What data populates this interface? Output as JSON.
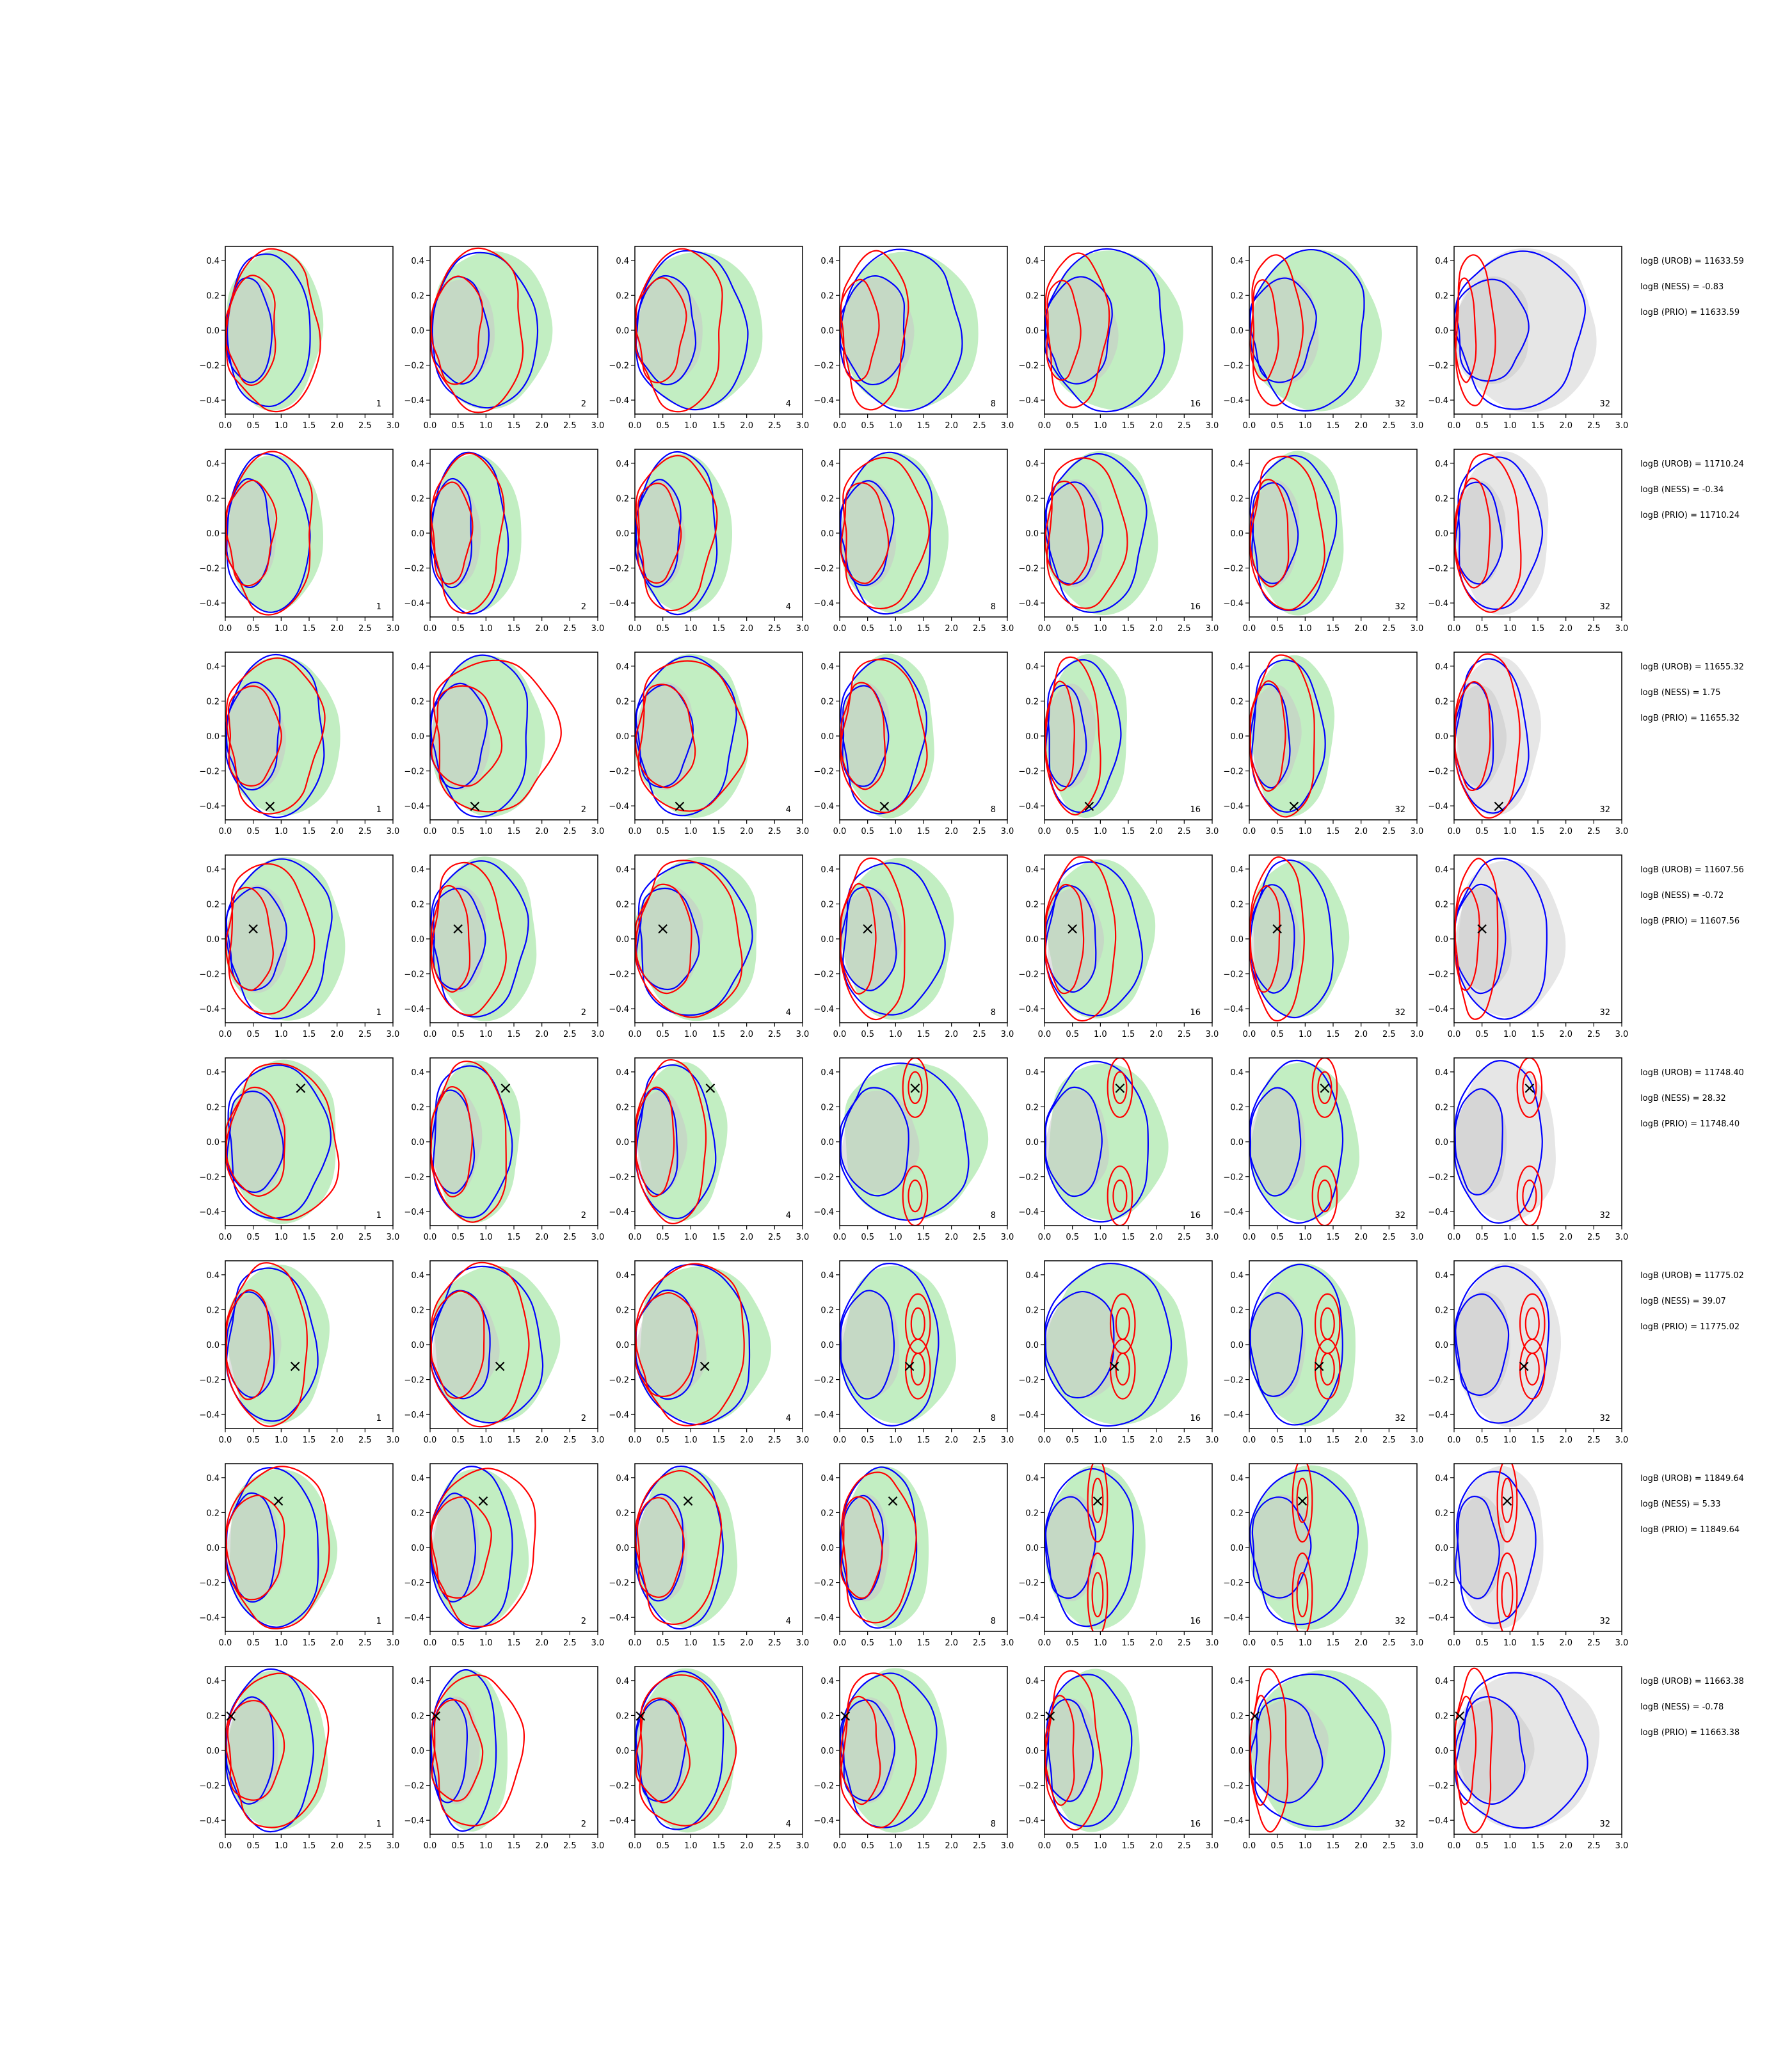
{
  "figure": {
    "type": "contour-grid",
    "xticks": [
      "0.0",
      "0.5",
      "1.0",
      "1.5",
      "2.0",
      "2.5",
      "3.0"
    ],
    "yticks": [
      "0.4",
      "0.2",
      "0.0",
      "−0.2",
      "−0.4"
    ],
    "xlim": [
      0,
      3
    ],
    "ylim": [
      -0.48,
      0.48
    ],
    "colors": {
      "green_fill": "#90e090",
      "grey_fill": "#c8c8c8",
      "blue_line": "#0000ff",
      "red_line": "#ff0000",
      "marker": "#000000"
    },
    "marker_symbol": "×"
  },
  "chart_data": {
    "type": "contour",
    "x_range": [
      0,
      3
    ],
    "y_range": [
      -0.48,
      0.48
    ],
    "x_ticks": [
      0.0,
      0.5,
      1.0,
      1.5,
      2.0,
      2.5,
      3.0
    ],
    "y_ticks": [
      0.4,
      0.2,
      0.0,
      -0.2,
      -0.4
    ],
    "column_labels": [
      "1",
      "2",
      "4",
      "8",
      "16",
      "32",
      "32"
    ],
    "rows": [
      {
        "marker": null,
        "annotations": [
          "logB (UROB) = 11633.59",
          "logB (NESS) = -0.83",
          "logB (PRIO) = 11633.59"
        ],
        "blue_extent": [
          1.5,
          1.9,
          2.0,
          2.2,
          2.2,
          2.1,
          2.3
        ],
        "red_extent": [
          1.7,
          1.7,
          1.6,
          1.2,
          1.1,
          0.9,
          0.7
        ],
        "red_lobes": null
      },
      {
        "marker": null,
        "annotations": [
          "logB (UROB) = 11710.24",
          "logB (NESS) = -0.34",
          "logB (PRIO) = 11710.24"
        ],
        "blue_extent": [
          1.5,
          1.4,
          1.5,
          1.7,
          1.8,
          1.5,
          1.5
        ],
        "red_extent": [
          1.6,
          1.3,
          1.4,
          1.5,
          1.4,
          1.3,
          1.2
        ],
        "red_lobes": null
      },
      {
        "marker": [
          0.8,
          -0.4
        ],
        "annotations": [
          "logB (UROB) = 11655.32",
          "logB (NESS) = 1.75",
          "logB (PRIO) = 11655.32"
        ],
        "blue_extent": [
          1.8,
          1.8,
          1.8,
          1.5,
          1.3,
          1.3,
          1.3
        ],
        "red_extent": [
          1.7,
          2.2,
          1.9,
          1.5,
          1.0,
          1.2,
          1.2
        ],
        "red_lobes": null
      },
      {
        "marker": [
          0.5,
          0.06
        ],
        "annotations": [
          "logB (UROB) = 11607.56",
          "logB (NESS) = -0.72",
          "logB (PRIO) = 11607.56"
        ],
        "blue_extent": [
          1.9,
          1.7,
          2.0,
          1.8,
          1.7,
          1.5,
          1.7
        ],
        "red_extent": [
          1.5,
          1.3,
          1.9,
          1.2,
          1.3,
          1.0,
          0.8
        ],
        "red_lobes": null
      },
      {
        "marker": [
          1.35,
          0.31
        ],
        "annotations": [
          "logB (UROB) = 11748.40",
          "logB (NESS) = 28.32",
          "logB (PRIO) = 11748.40"
        ],
        "blue_extent": [
          1.8,
          1.4,
          1.4,
          2.3,
          1.9,
          1.7,
          1.6
        ],
        "red_extent": [
          2.0,
          1.4,
          1.3,
          1.6,
          1.6,
          1.5,
          1.5
        ],
        "red_lobes": [
          [
            1.35,
            0.31
          ],
          [
            1.35,
            -0.31
          ]
        ]
      },
      {
        "marker": [
          1.25,
          -0.12
        ],
        "annotations": [
          "logB (UROB) = 11775.02",
          "logB (NESS) = 39.07",
          "logB (PRIO) = 11775.02"
        ],
        "blue_extent": [
          1.6,
          2.0,
          2.1,
          1.8,
          2.3,
          1.7,
          1.7
        ],
        "red_extent": [
          1.5,
          1.8,
          2.0,
          1.6,
          1.6,
          1.6,
          1.6
        ],
        "red_lobes": [
          [
            1.4,
            0.12
          ],
          [
            1.4,
            -0.14
          ]
        ]
      },
      {
        "marker": [
          0.95,
          0.27
        ],
        "annotations": [
          "logB (UROB) = 11849.64",
          "logB (NESS) = 5.33",
          "logB (PRIO) = 11849.64"
        ],
        "blue_extent": [
          1.7,
          1.5,
          1.6,
          1.4,
          1.6,
          1.9,
          1.4
        ],
        "red_extent": [
          1.9,
          1.9,
          1.5,
          1.3,
          1.2,
          1.0,
          1.0
        ],
        "red_lobes": [
          [
            0.95,
            0.27
          ],
          [
            0.95,
            -0.27
          ]
        ]
      },
      {
        "marker": [
          0.1,
          0.2
        ],
        "annotations": [
          "logB (UROB) = 11663.38",
          "logB (NESS) = -0.78",
          "logB (PRIO) = 11663.38"
        ],
        "blue_extent": [
          1.6,
          1.2,
          1.6,
          1.7,
          1.5,
          2.3,
          2.3
        ],
        "red_extent": [
          1.8,
          1.6,
          1.7,
          1.3,
          1.0,
          0.7,
          0.7
        ],
        "red_lobes": null
      }
    ]
  }
}
